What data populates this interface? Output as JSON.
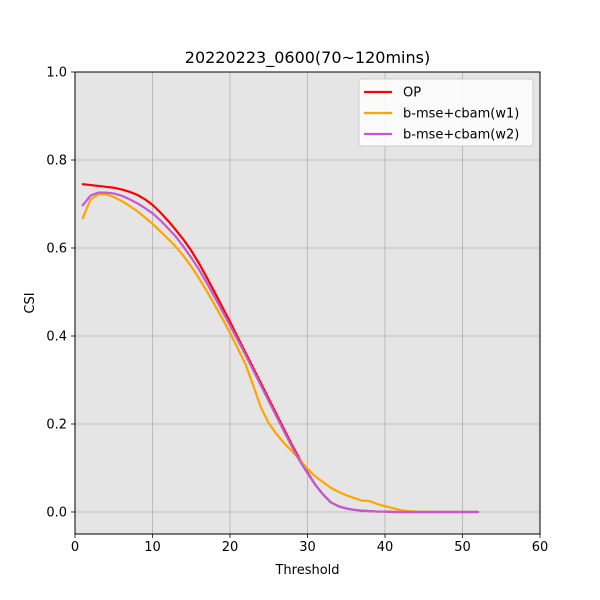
{
  "chart_data": {
    "type": "line",
    "title": "20220223_0600(70~120mins)",
    "xlabel": "Threshold",
    "ylabel": "CSI",
    "xlim": [
      0,
      60
    ],
    "ylim": [
      -0.05,
      1.0
    ],
    "xticks": [
      0,
      10,
      20,
      30,
      40,
      50,
      60
    ],
    "xtick_labels": [
      "0",
      "10",
      "20",
      "30",
      "40",
      "50",
      "60"
    ],
    "yticks": [
      0.0,
      0.2,
      0.4,
      0.6,
      0.8,
      1.0
    ],
    "ytick_labels": [
      "0.0",
      "0.2",
      "0.4",
      "0.6",
      "0.8",
      "1.0"
    ],
    "grid": true,
    "legend_position": "top-right",
    "background_color": "#e5e5e5",
    "grid_color": "#b0b0b0",
    "series": [
      {
        "name": "OP",
        "color": "#ff0000",
        "x": [
          1,
          2,
          3,
          4,
          5,
          6,
          7,
          8,
          9,
          10,
          11,
          12,
          13,
          14,
          15,
          16,
          17,
          18,
          19,
          20,
          21,
          22,
          23,
          24,
          25,
          26,
          27,
          28,
          29,
          30,
          31,
          32,
          33,
          34,
          35,
          36,
          37,
          38,
          39,
          40,
          41,
          42,
          43,
          44,
          45,
          46,
          47,
          48,
          49,
          50,
          51,
          52
        ],
        "y": [
          0.745,
          0.743,
          0.741,
          0.739,
          0.737,
          0.733,
          0.728,
          0.721,
          0.711,
          0.698,
          0.681,
          0.662,
          0.641,
          0.619,
          0.594,
          0.565,
          0.533,
          0.5,
          0.466,
          0.432,
          0.397,
          0.362,
          0.327,
          0.292,
          0.257,
          0.222,
          0.187,
          0.152,
          0.12,
          0.09,
          0.062,
          0.04,
          0.022,
          0.013,
          0.008,
          0.005,
          0.003,
          0.002,
          0.001,
          0.001,
          0,
          0,
          0,
          0,
          0,
          0,
          0,
          0,
          0,
          0,
          0,
          0
        ]
      },
      {
        "name": "b-mse+cbam(w1)",
        "color": "#ffa500",
        "x": [
          1,
          2,
          3,
          4,
          5,
          6,
          7,
          8,
          9,
          10,
          11,
          12,
          13,
          14,
          15,
          16,
          17,
          18,
          19,
          20,
          21,
          22,
          23,
          24,
          25,
          26,
          27,
          28,
          29,
          30,
          31,
          32,
          33,
          34,
          35,
          36,
          37,
          38,
          39,
          40,
          41,
          42,
          43,
          44,
          45,
          46,
          47,
          48,
          49,
          50,
          51,
          52
        ],
        "y": [
          0.668,
          0.71,
          0.722,
          0.722,
          0.716,
          0.707,
          0.696,
          0.684,
          0.67,
          0.655,
          0.638,
          0.621,
          0.603,
          0.582,
          0.558,
          0.531,
          0.502,
          0.471,
          0.44,
          0.407,
          0.372,
          0.336,
          0.287,
          0.237,
          0.202,
          0.177,
          0.156,
          0.138,
          0.119,
          0.098,
          0.081,
          0.068,
          0.055,
          0.046,
          0.038,
          0.032,
          0.026,
          0.025,
          0.018,
          0.013,
          0.009,
          0.004,
          0.002,
          0.001,
          0,
          0,
          0,
          0,
          0,
          0,
          0,
          0
        ]
      },
      {
        "name": "b-mse+cbam(w2)",
        "color": "#c15ad4",
        "x": [
          1,
          2,
          3,
          4,
          5,
          6,
          7,
          8,
          9,
          10,
          11,
          12,
          13,
          14,
          15,
          16,
          17,
          18,
          19,
          20,
          21,
          22,
          23,
          24,
          25,
          26,
          27,
          28,
          29,
          30,
          31,
          32,
          33,
          34,
          35,
          36,
          37,
          38,
          39,
          40,
          41,
          42,
          43,
          44,
          45,
          46,
          47,
          48,
          49,
          50,
          51,
          52
        ],
        "y": [
          0.697,
          0.719,
          0.726,
          0.726,
          0.724,
          0.719,
          0.711,
          0.702,
          0.691,
          0.679,
          0.663,
          0.645,
          0.626,
          0.603,
          0.578,
          0.551,
          0.521,
          0.489,
          0.457,
          0.424,
          0.391,
          0.357,
          0.322,
          0.287,
          0.252,
          0.217,
          0.182,
          0.148,
          0.116,
          0.088,
          0.062,
          0.04,
          0.022,
          0.013,
          0.008,
          0.005,
          0.003,
          0.002,
          0.001,
          0.001,
          0,
          0,
          0,
          0,
          0,
          0,
          0,
          0,
          0,
          0,
          0,
          0
        ]
      }
    ]
  }
}
